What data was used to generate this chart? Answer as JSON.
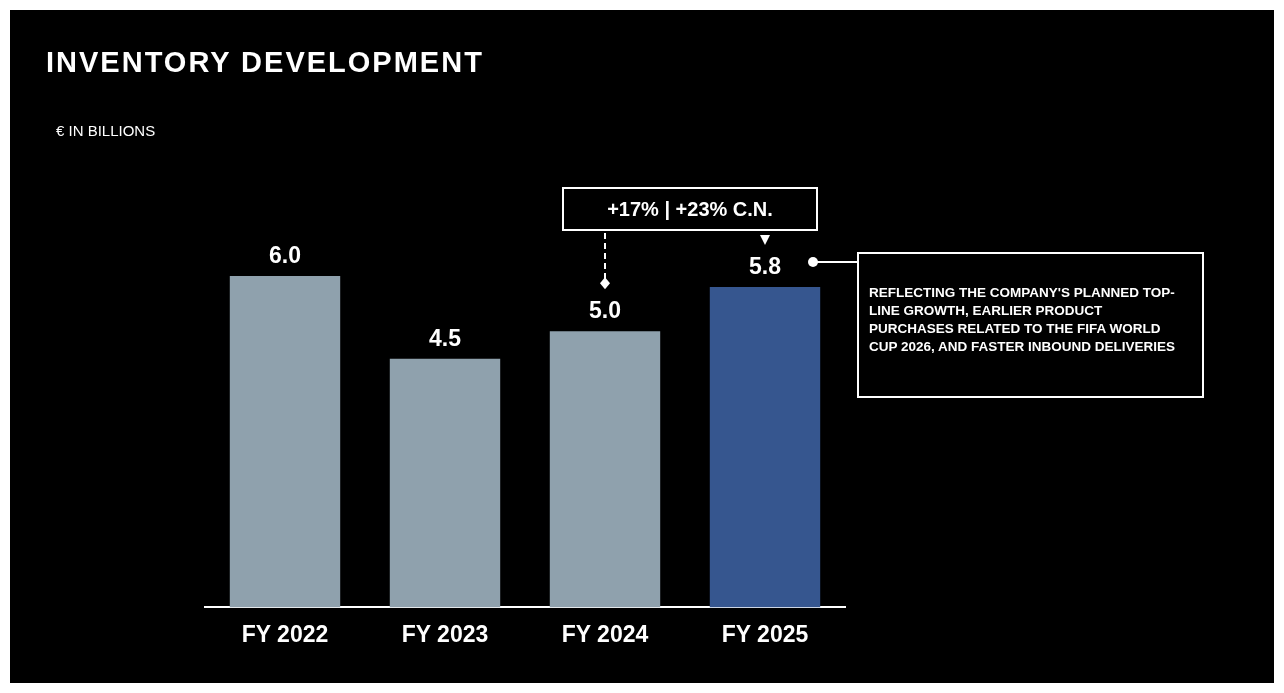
{
  "chart_data": {
    "type": "bar",
    "title": "INVENTORY DEVELOPMENT",
    "subtitle": "€ IN BILLIONS",
    "categories": [
      "FY 2022",
      "FY 2023",
      "FY 2024",
      "FY 2025"
    ],
    "values": [
      6.0,
      4.5,
      5.0,
      5.8
    ],
    "colors": [
      "#8fa1ad",
      "#8fa1ad",
      "#8fa1ad",
      "#36568f"
    ],
    "value_labels": [
      "6.0",
      "4.5",
      "5.0",
      "5.8"
    ],
    "annotations": [
      "+17% | +23% C.N.",
      "REFLECTING THE COMPANY'S PLANNED TOP-LINE GROWTH, EARLIER PRODUCT PURCHASES RELATED TO THE FIFA WORLD CUP 2026, AND FASTER INBOUND DELIVERIES"
    ]
  }
}
